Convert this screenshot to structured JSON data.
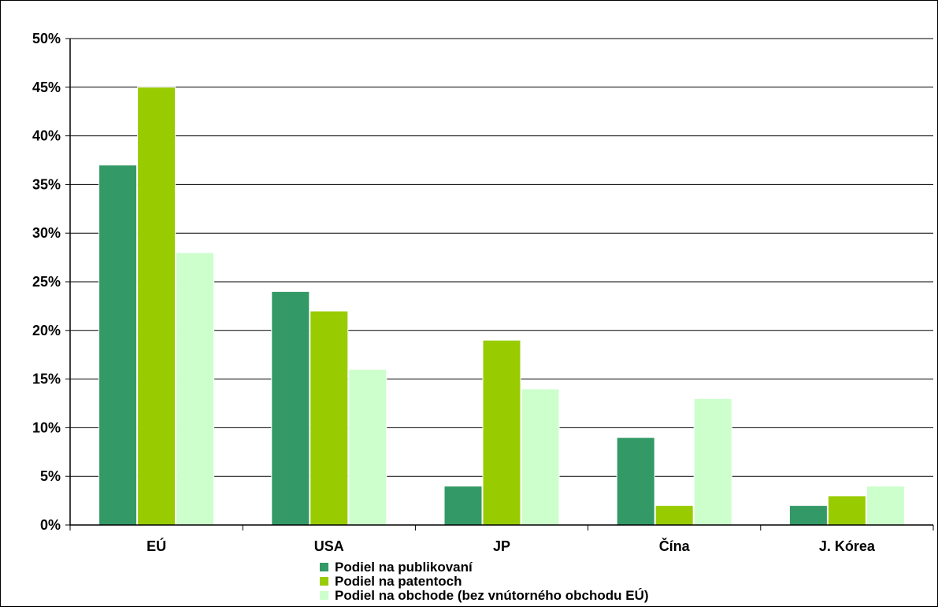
{
  "chart_data": {
    "type": "bar",
    "title": "",
    "xlabel": "",
    "ylabel": "",
    "ylim": [
      0,
      50
    ],
    "y_unit": "%",
    "y_ticks": [
      "0%",
      "5%",
      "10%",
      "15%",
      "20%",
      "25%",
      "30%",
      "35%",
      "40%",
      "45%",
      "50%"
    ],
    "y_tick_values": [
      0,
      5,
      10,
      15,
      20,
      25,
      30,
      35,
      40,
      45,
      50
    ],
    "grid": "horizontal",
    "legend_position": "bottom",
    "categories": [
      "EÚ",
      "USA",
      "JP",
      "Čína",
      "J. Kórea"
    ],
    "series": [
      {
        "name": "Podiel na publikovaní",
        "color": "#339966",
        "values": [
          37,
          24,
          4,
          9,
          2
        ]
      },
      {
        "name": "Podiel na patentoch",
        "color": "#99cc00",
        "values": [
          45,
          22,
          19,
          2,
          3
        ]
      },
      {
        "name": "Podiel na obchode (bez vnútorného obchodu EÚ)",
        "color": "#ccffcc",
        "values": [
          28,
          16,
          14,
          13,
          4
        ]
      }
    ]
  }
}
